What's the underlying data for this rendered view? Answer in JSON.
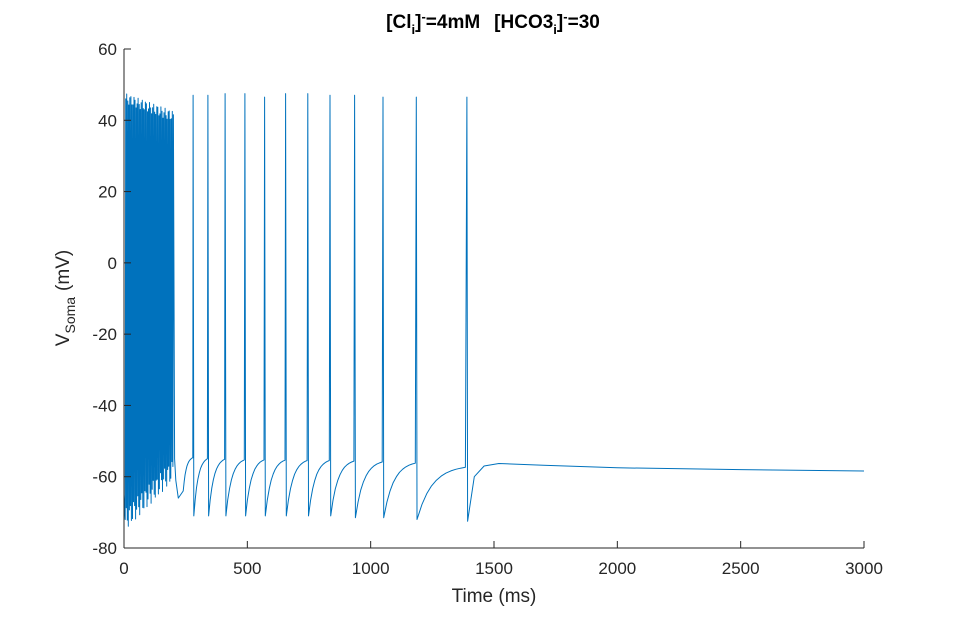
{
  "chart_data": {
    "type": "line",
    "title_parts": {
      "cl_prefix": "[Cl",
      "cl_sub": "i",
      "cl_close": "]",
      "cl_sup": "-",
      "cl_value": "=4mM",
      "hco3_prefix": "[HCO3",
      "hco3_sub": "i",
      "hco3_close": "]",
      "hco3_sup": "-",
      "hco3_value": "=30"
    },
    "xlabel": "Time (ms)",
    "ylabel_main": "V",
    "ylabel_sub": "Soma",
    "ylabel_unit": "(mV)",
    "xlim": [
      0,
      3000
    ],
    "ylim": [
      -80,
      60
    ],
    "x_ticks": [
      0,
      500,
      1000,
      1500,
      2000,
      2500,
      3000
    ],
    "y_ticks": [
      -80,
      -60,
      -40,
      -20,
      0,
      20,
      40,
      60
    ],
    "grid": false,
    "line_color": "#0072BD",
    "burst": {
      "start": 5,
      "end": 200,
      "interval": 4.2,
      "peak_start": 46,
      "peak_end": 41,
      "trough_start": -72,
      "trough_end": -58
    },
    "spikes": [
      {
        "t": 280,
        "peak": 47,
        "trough": -71
      },
      {
        "t": 340,
        "peak": 47,
        "trough": -71
      },
      {
        "t": 410,
        "peak": 47.5,
        "trough": -71
      },
      {
        "t": 490,
        "peak": 47.5,
        "trough": -71
      },
      {
        "t": 570,
        "peak": 46.5,
        "trough": -71
      },
      {
        "t": 655,
        "peak": 47.5,
        "trough": -71
      },
      {
        "t": 745,
        "peak": 47.5,
        "trough": -71
      },
      {
        "t": 835,
        "peak": 47,
        "trough": -71
      },
      {
        "t": 935,
        "peak": 47,
        "trough": -71.5
      },
      {
        "t": 1050,
        "peak": 46.5,
        "trough": -71.5
      },
      {
        "t": 1185,
        "peak": 46.5,
        "trough": -72
      },
      {
        "t": 1390,
        "peak": 46.5,
        "trough": -72.5
      }
    ],
    "tail": [
      {
        "t": 1420,
        "v": -60
      },
      {
        "t": 1460,
        "v": -57
      },
      {
        "t": 1520,
        "v": -56.3
      },
      {
        "t": 1700,
        "v": -56.8
      },
      {
        "t": 2000,
        "v": -57.5
      },
      {
        "t": 2500,
        "v": -58
      },
      {
        "t": 3000,
        "v": -58.4
      }
    ]
  }
}
